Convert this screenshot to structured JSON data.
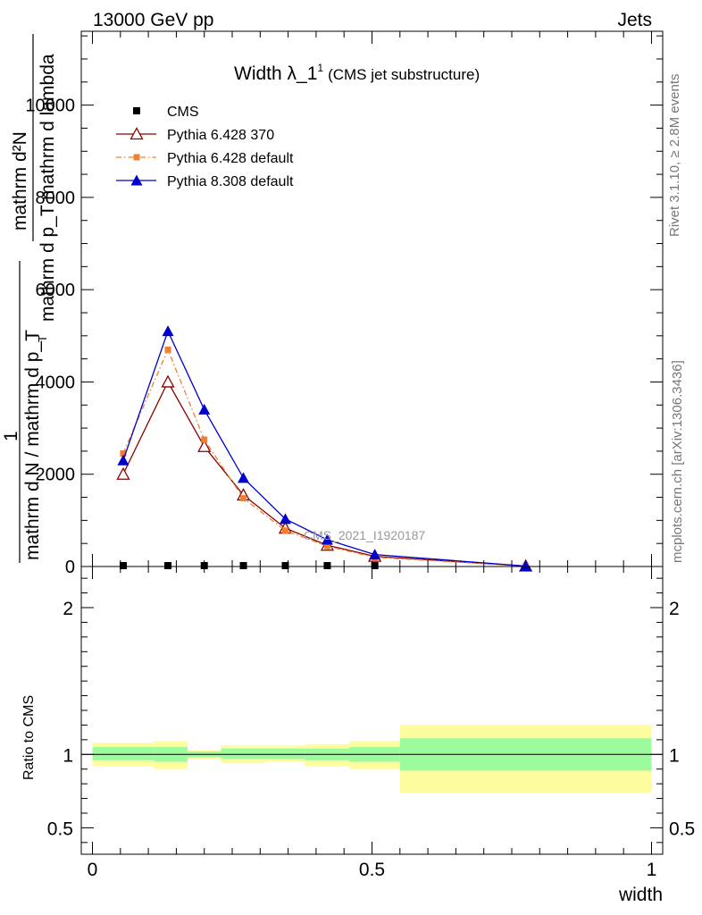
{
  "header": {
    "left": "13000 GeV pp",
    "right": "Jets"
  },
  "side_labels": {
    "rivet": "Rivet 3.1.10, ≥ 2.8M events",
    "mcplots": "mcplots.cern.ch [arXiv:1306.3436]"
  },
  "chart_data": [
    {
      "type": "line",
      "title": "Width λ_1",
      "title_superscript": "1",
      "subtitle": "(CMS jet substructure)",
      "ylabel_numerator": "mathrm d²N",
      "ylabel_denominator": "mathrm d p_T mathrm d lambda",
      "ylabel_prefix_top": "1",
      "ylabel_prefix_bottom": "mathrm d N / mathrm d p_T",
      "ylabel_alt_sub": "T",
      "watermark": "CMS_2021_I1920187",
      "ylim": [
        0,
        11600
      ],
      "xlim": [
        -0.02,
        1.02
      ],
      "yticks": [
        {
          "v": 0,
          "label": "0"
        },
        {
          "v": 2000,
          "label": "2000"
        },
        {
          "v": 4000,
          "label": "4000"
        },
        {
          "v": 6000,
          "label": "6000"
        },
        {
          "v": 8000,
          "label": "8000"
        },
        {
          "v": 10000,
          "label": "10000"
        }
      ],
      "legend_position": "top-left",
      "series": [
        {
          "name": "CMS",
          "color": "#000000",
          "marker": "square",
          "x": [
            0.055,
            0.135,
            0.2,
            0.27,
            0.345,
            0.42,
            0.505
          ],
          "y": [
            0,
            0,
            0,
            0,
            0,
            0,
            0
          ]
        },
        {
          "name": "Pythia 6.428 370",
          "color": "#8b0000",
          "marker": "open-triangle",
          "x": [
            0.055,
            0.135,
            0.2,
            0.27,
            0.345,
            0.42,
            0.505,
            0.775
          ],
          "y": [
            2000,
            4000,
            2600,
            1550,
            830,
            460,
            220,
            10
          ]
        },
        {
          "name": "Pythia 6.428 default",
          "color": "#f08030",
          "marker": "filled-square",
          "dash": "dash-dot",
          "x": [
            0.055,
            0.135,
            0.2,
            0.27,
            0.345,
            0.42,
            0.505,
            0.775
          ],
          "y": [
            2450,
            4700,
            2750,
            1480,
            780,
            440,
            200,
            10
          ]
        },
        {
          "name": "Pythia 8.308 default",
          "color": "#0000cc",
          "marker": "filled-triangle",
          "x": [
            0.055,
            0.135,
            0.2,
            0.27,
            0.345,
            0.42,
            0.505,
            0.775
          ],
          "y": [
            2300,
            5100,
            3400,
            1920,
            1030,
            580,
            260,
            10
          ]
        }
      ]
    },
    {
      "type": "area",
      "ylabel": "Ratio to CMS",
      "xlabel": "width",
      "ylim": [
        0.32,
        2.28
      ],
      "xlim": [
        -0.02,
        1.02
      ],
      "yticks_left": [
        {
          "v": 0.5,
          "label": "0.5"
        },
        {
          "v": 1,
          "label": "1"
        },
        {
          "v": 2,
          "label": "2"
        }
      ],
      "yticks_right": [
        {
          "v": 0.5,
          "label": "0.5"
        },
        {
          "v": 1,
          "label": "1"
        },
        {
          "v": 2,
          "label": "2"
        }
      ],
      "xticks": [
        {
          "v": 0,
          "label": "0"
        },
        {
          "v": 0.5,
          "label": "0.5"
        },
        {
          "v": 1,
          "label": "1"
        }
      ],
      "reference_line": 1,
      "bands": [
        {
          "x0": 0.0,
          "x1": 0.11,
          "inner": [
            0.96,
            1.05
          ],
          "outer": [
            0.92,
            1.08
          ]
        },
        {
          "x0": 0.11,
          "x1": 0.17,
          "inner": [
            0.95,
            1.05
          ],
          "outer": [
            0.9,
            1.09
          ]
        },
        {
          "x0": 0.17,
          "x1": 0.23,
          "inner": [
            0.98,
            1.02
          ],
          "outer": [
            0.97,
            1.03
          ]
        },
        {
          "x0": 0.23,
          "x1": 0.31,
          "inner": [
            0.97,
            1.04
          ],
          "outer": [
            0.94,
            1.06
          ]
        },
        {
          "x0": 0.31,
          "x1": 0.38,
          "inner": [
            0.97,
            1.04
          ],
          "outer": [
            0.95,
            1.06
          ]
        },
        {
          "x0": 0.38,
          "x1": 0.46,
          "inner": [
            0.96,
            1.04
          ],
          "outer": [
            0.92,
            1.07
          ]
        },
        {
          "x0": 0.46,
          "x1": 0.55,
          "inner": [
            0.95,
            1.05
          ],
          "outer": [
            0.9,
            1.09
          ]
        },
        {
          "x0": 0.55,
          "x1": 1.0,
          "inner": [
            0.89,
            1.11
          ],
          "outer": [
            0.74,
            1.2
          ]
        }
      ],
      "colors": {
        "inner": "#9cfb9c",
        "outer": "#fdfda0"
      }
    }
  ]
}
